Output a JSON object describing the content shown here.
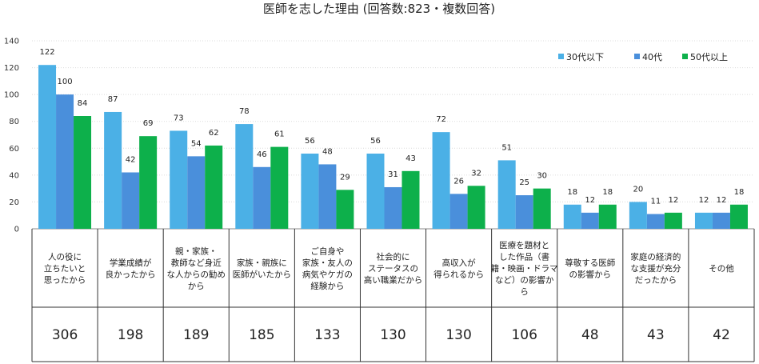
{
  "chart_data": {
    "type": "bar",
    "title": "医師を志した理由 (回答数:823・複数回答)",
    "xlabel": "",
    "ylabel": "",
    "ylim": [
      0,
      140
    ],
    "yticks": [
      0,
      20,
      40,
      60,
      80,
      100,
      120,
      140
    ],
    "grid": true,
    "legend_position": "top-right",
    "categories": [
      "人の役に立ちたいと思ったから",
      "学業成績が良かったから",
      "親・家族・教師など身近な人からの勧めから",
      "家族・親族に医師がいたから",
      "ご自身や家族・友人の病気やケガの経験から",
      "社会的にステータスの高い職業だから",
      "高収入が得られるから",
      "医療を題材とした作品（書籍・映画・ドラマなど）の影響から",
      "尊敬する医師の影響から",
      "家庭の経済的な支援が充分だったから",
      "その他"
    ],
    "category_lines": [
      [
        "人の役に",
        "立ちたいと",
        "思ったから"
      ],
      [
        "学業成績が",
        "良かったから"
      ],
      [
        "親・家族・",
        "教師など身近",
        "な人からの勧め",
        "から"
      ],
      [
        "家族・親族に",
        "医師がいたから"
      ],
      [
        "ご自身や",
        "家族・友人の",
        "病気やケガの",
        "経験から"
      ],
      [
        "社会的に",
        "ステータスの",
        "高い職業だから"
      ],
      [
        "高収入が",
        "得られるから"
      ],
      [
        "医療を題材と",
        "した作品（書",
        "籍・映画・ドラマ",
        "など）の影響か",
        "ら"
      ],
      [
        "尊敬する医師",
        "の影響から"
      ],
      [
        "家庭の経済的",
        "な支援が充分",
        "だったから"
      ],
      [
        "その他"
      ]
    ],
    "series": [
      {
        "name": "30代以下",
        "color": "#4bb0e6",
        "values": [
          122,
          87,
          73,
          78,
          56,
          56,
          72,
          51,
          18,
          20,
          12
        ]
      },
      {
        "name": "40代",
        "color": "#4a8fdb",
        "values": [
          100,
          42,
          54,
          46,
          48,
          31,
          26,
          25,
          12,
          11,
          12
        ]
      },
      {
        "name": "50代以上",
        "color": "#0db04b",
        "values": [
          84,
          69,
          62,
          61,
          29,
          43,
          32,
          30,
          18,
          12,
          18
        ]
      }
    ],
    "totals": [
      306,
      198,
      189,
      185,
      133,
      130,
      130,
      106,
      48,
      43,
      42
    ]
  }
}
